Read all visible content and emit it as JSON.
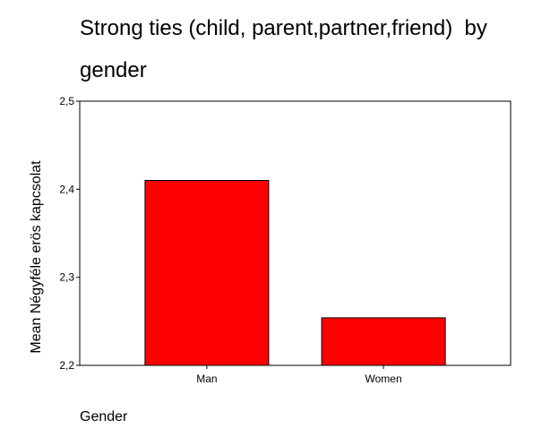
{
  "chart_data": {
    "type": "bar",
    "title_lines": [
      "Strong ties (child, parent,partner,friend)  by",
      "gender"
    ],
    "xlabel": "Gender",
    "ylabel": "Mean Négyféle erös kapcsolat",
    "categories": [
      "Man",
      "Women"
    ],
    "values": [
      2.41,
      2.254
    ],
    "ylim": [
      2.2,
      2.5
    ],
    "y_ticks": [
      {
        "value": 2.2,
        "label": "2,2"
      },
      {
        "value": 2.3,
        "label": "2,3"
      },
      {
        "value": 2.4,
        "label": "2,4"
      },
      {
        "value": 2.5,
        "label": "2,5"
      }
    ],
    "bar_color": "#ff0000",
    "grid": false,
    "legend": "none"
  }
}
